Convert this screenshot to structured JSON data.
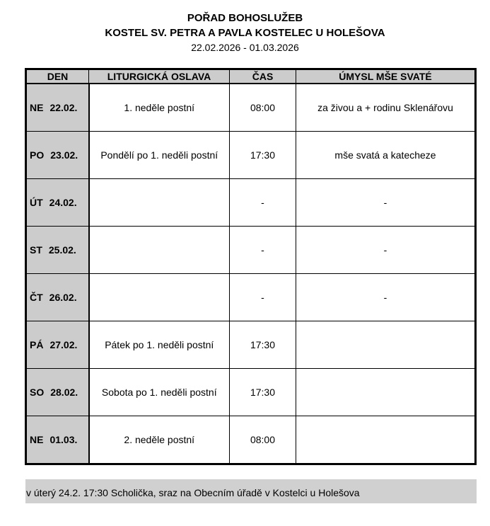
{
  "header": {
    "title": "POŘAD BOHOSLUŽEB",
    "church": "KOSTEL SV. PETRA A PAVLA KOSTELEC U HOLEŠOVA",
    "dates": "22.02.2026 - 01.03.2026"
  },
  "table": {
    "columns": [
      "DEN",
      "LITURGICKÁ OSLAVA",
      "ČAS",
      "ÚMYSL MŠE SVATÉ"
    ],
    "rows": [
      {
        "day": "NE",
        "date": "22.02.",
        "celebration": "1. neděle postní",
        "time": "08:00",
        "intention": "za živou a + rodinu Sklenářovu"
      },
      {
        "day": "PO",
        "date": "23.02.",
        "celebration": "Pondělí po 1. neděli postní",
        "time": "17:30",
        "intention": "mše svatá a katecheze"
      },
      {
        "day": "ÚT",
        "date": "24.02.",
        "celebration": "",
        "time": "-",
        "intention": "-"
      },
      {
        "day": "ST",
        "date": "25.02.",
        "celebration": "",
        "time": "-",
        "intention": "-"
      },
      {
        "day": "ČT",
        "date": "26.02.",
        "celebration": "",
        "time": "-",
        "intention": "-"
      },
      {
        "day": "PÁ",
        "date": "27.02.",
        "celebration": "Pátek po 1. neděli postní",
        "time": "17:30",
        "intention": ""
      },
      {
        "day": "SO",
        "date": "28.02.",
        "celebration": "Sobota po 1. neděli postní",
        "time": "17:30",
        "intention": ""
      },
      {
        "day": "NE",
        "date": "01.03.",
        "celebration": "2. neděle postní",
        "time": "08:00",
        "intention": ""
      }
    ]
  },
  "note": "v úterý 24.2. 17:30 Scholička, sraz na Obecním úřadě v Kostelci u Holešova"
}
